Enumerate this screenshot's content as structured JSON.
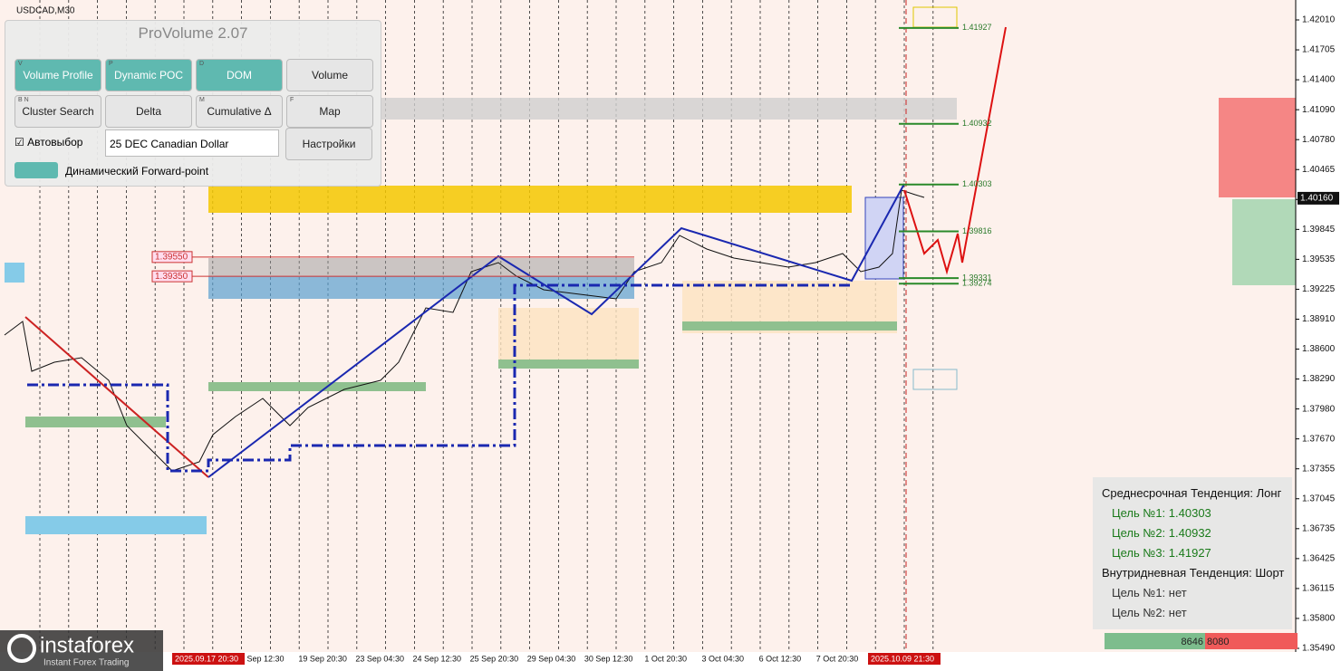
{
  "symbol": "USDCAD,M30",
  "price_scale": {
    "labels": [
      "1.42010",
      "1.41705",
      "1.41400",
      "1.41090",
      "1.40780",
      "1.40465",
      "1.40160",
      "1.39845",
      "1.39535",
      "1.39225",
      "1.38910",
      "1.38600",
      "1.38290",
      "1.37980",
      "1.37670",
      "1.37355",
      "1.37045",
      "1.36735",
      "1.36425",
      "1.36115",
      "1.35800",
      "1.35490"
    ],
    "current": "1.40160"
  },
  "time_scale": {
    "labels": [
      "Sep 12:30",
      "19 Sep 20:30",
      "23 Sep 04:30",
      "24 Sep 12:30",
      "25 Sep 20:30",
      "29 Sep 04:30",
      "30 Sep 12:30",
      "1 Oct 20:30",
      "3 Oct 04:30",
      "6 Oct 12:30",
      "7 Oct 20:30"
    ],
    "marker_left": "2025.09.17 20:30",
    "marker_right": "2025.10.09 21:30"
  },
  "levels": [
    "1.41927",
    "1.40932",
    "1.40303",
    "1.39816",
    "1.39331",
    "1.39274"
  ],
  "red_levels": [
    "1.39550",
    "1.39350"
  ],
  "panel": {
    "title": "ProVolume 2.07",
    "buttons": [
      {
        "key": "V",
        "label": "Volume Profile"
      },
      {
        "key": "P",
        "label": "Dynamic POC"
      },
      {
        "key": "D",
        "label": "DOM"
      },
      {
        "key": "",
        "label": "Volume"
      },
      {
        "key": "B N",
        "label": "Cluster Search"
      },
      {
        "key": "",
        "label": "Delta"
      },
      {
        "key": "M",
        "label": "Cumulative Δ"
      },
      {
        "key": "F",
        "label": "Map"
      }
    ],
    "checkbox": "Автовыбор",
    "select": "25 DEC Canadian Dollar",
    "settings": "Настройки",
    "toggle": "Динамический Forward-point"
  },
  "info": {
    "lines": [
      "Среднесрочная Тенденция: Лонг",
      "Цель №1: 1.40303",
      "Цель №2: 1.40932",
      "Цель №3: 1.41927",
      "Внутридневная Тенденция: Шорт",
      "Цель №1: нет",
      "Цель №2: нет"
    ]
  },
  "volume": {
    "buy": "8646",
    "sell": "8080"
  },
  "logo": {
    "name": "instaforex",
    "tagline": "Instant Forex Trading"
  }
}
